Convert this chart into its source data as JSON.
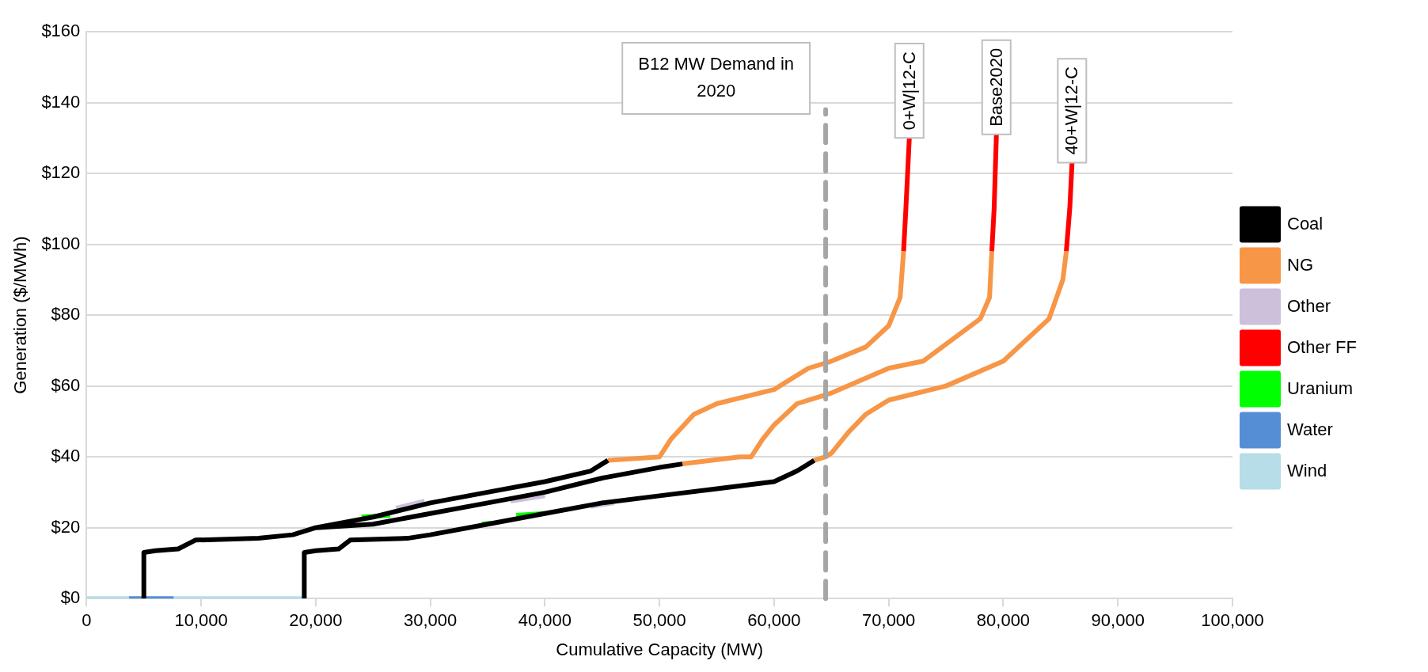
{
  "chart_data": {
    "type": "line",
    "xlabel": "Cumulative Capacity (MW)",
    "ylabel": "Generation ($/MWh)",
    "xlim": [
      0,
      100000
    ],
    "ylim": [
      0,
      160
    ],
    "xticks": [
      0,
      {
        "value": 10000,
        "label": "10,000"
      },
      {
        "value": 20000,
        "label": "20,000"
      },
      {
        "value": 30000,
        "label": "30,000"
      },
      {
        "value": 40000,
        "label": "40,000"
      },
      {
        "value": 50000,
        "label": "50,000"
      },
      {
        "value": 60000,
        "label": "60,000"
      },
      {
        "value": 70000,
        "label": "70,000"
      },
      {
        "value": 80000,
        "label": "80,000"
      },
      {
        "value": 90000,
        "label": "90,000"
      },
      {
        "value": 100000,
        "label": "100,000"
      }
    ],
    "yticks": [
      {
        "value": 0,
        "label": "$0"
      },
      {
        "value": 20,
        "label": "$20"
      },
      {
        "value": 40,
        "label": "$40"
      },
      {
        "value": 60,
        "label": "$60"
      },
      {
        "value": 80,
        "label": "$80"
      },
      {
        "value": 100,
        "label": "$100"
      },
      {
        "value": 120,
        "label": "$120"
      },
      {
        "value": 140,
        "label": "$140"
      },
      {
        "value": 160,
        "label": "$160"
      }
    ],
    "grid": "y",
    "legend": "right",
    "line_style": "solid",
    "series": [
      {
        "name": "Coal",
        "color": "#000000",
        "x": [
          5000,
          5000,
          6000,
          8000,
          9500,
          15000,
          18000,
          20000,
          25000,
          30000,
          35000,
          40000,
          44000,
          45500,
          null,
          null,
          20000,
          25000,
          30000,
          35000,
          40000,
          45000,
          50000,
          52000,
          null,
          19000,
          19000,
          20000,
          22000,
          23000,
          28000,
          30000,
          35000,
          40000,
          45000,
          50000,
          55000,
          60000,
          62000,
          63500
        ],
        "values": [
          0,
          13,
          13.5,
          14,
          16.5,
          17,
          18,
          20,
          23,
          27,
          30,
          33,
          36,
          39,
          null,
          null,
          20,
          21,
          24,
          27,
          30,
          34,
          37,
          38,
          null,
          0,
          13,
          13.5,
          14,
          16.5,
          17,
          18,
          21,
          24,
          27,
          29,
          31,
          33,
          36,
          39
        ]
      },
      {
        "name": "NG",
        "color": "#f79646",
        "x": [
          45500,
          50000,
          51000,
          53000,
          55000,
          60000,
          63000,
          65000,
          68000,
          70000,
          71000,
          71300,
          null,
          52000,
          57000,
          58000,
          59000,
          60000,
          62000,
          65000,
          70000,
          73000,
          78000,
          78800,
          79000,
          null,
          63500,
          64500,
          65000,
          66500,
          68000,
          70000,
          75000,
          80000,
          84000,
          85200,
          85500
        ],
        "values": [
          39,
          40,
          45,
          52,
          55,
          59,
          65,
          67,
          71,
          77,
          85,
          98,
          null,
          38,
          40,
          40,
          45,
          49,
          55,
          58,
          65,
          67,
          79,
          85,
          98,
          null,
          39,
          40,
          41,
          47,
          52,
          56,
          60,
          67,
          79,
          90,
          98
        ]
      },
      {
        "name": "Other",
        "color": "#ccc0da",
        "x": [
          27000,
          29500,
          null,
          37000,
          40000,
          null,
          44000,
          46000
        ],
        "values": [
          25.5,
          27.5,
          null,
          27.5,
          29,
          null,
          26,
          27
        ]
      },
      {
        "name": "Other FF",
        "color": "#ff0000",
        "x": [
          71300,
          71500,
          71800,
          null,
          79000,
          79200,
          79400,
          null,
          85500,
          85800,
          86000
        ],
        "values": [
          98,
          110,
          130,
          null,
          98,
          110,
          131,
          null,
          98,
          110,
          123
        ]
      },
      {
        "name": "Uranium",
        "color": "#00ff00",
        "x": [
          24000,
          26500,
          null,
          34500,
          35300,
          null,
          37500,
          40000
        ],
        "values": [
          23,
          23.5,
          null,
          21,
          21.3,
          null,
          23.5,
          24
        ]
      },
      {
        "name": "Water",
        "color": "#558ed5",
        "x": [
          3700,
          7600
        ],
        "values": [
          0,
          0
        ]
      },
      {
        "name": "Wind",
        "color": "#b7dde8",
        "x": [
          0,
          3700,
          null,
          7600,
          19000
        ],
        "values": [
          0,
          0,
          null,
          0,
          0
        ]
      }
    ],
    "ref_lines": [
      {
        "axis": "x",
        "value": 64500,
        "label": "B12 MW Demand in 2020",
        "color": "#a6a6a6",
        "line_style": "dashed"
      }
    ],
    "annotations": [
      {
        "text": "0+W|12-C",
        "x": 71800,
        "y": 130
      },
      {
        "text": "Base2020",
        "x": 79400,
        "y": 131
      },
      {
        "text": "40+W|12-C",
        "x": 86000,
        "y": 123
      }
    ]
  }
}
